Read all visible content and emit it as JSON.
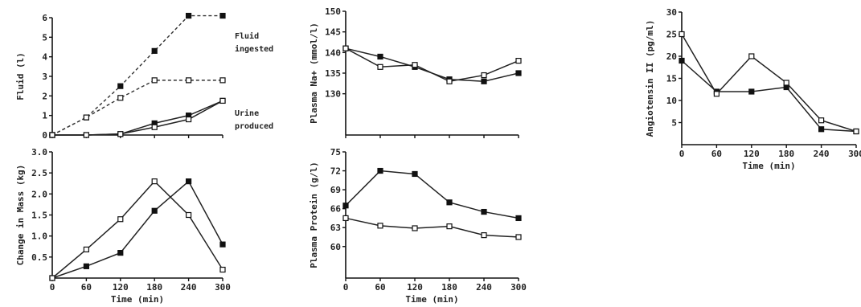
{
  "chart_data": [
    {
      "id": "fluid",
      "type": "line",
      "xlabel": "",
      "ylabel": "Fluid (l)",
      "xlim": [
        0,
        300
      ],
      "ylim": [
        0,
        6
      ],
      "x_ticks": [],
      "y_ticks": [
        0,
        1,
        2,
        3,
        4,
        5,
        6
      ],
      "x": [
        0,
        60,
        120,
        180,
        240,
        300
      ],
      "annotations": [
        "Fluid",
        "ingested",
        "Urine",
        "produced"
      ],
      "series": [
        {
          "marker": "filled",
          "dash": true,
          "values": [
            0,
            0.9,
            2.5,
            4.3,
            6.1,
            6.1
          ]
        },
        {
          "marker": "open",
          "dash": true,
          "values": [
            0,
            0.9,
            1.9,
            2.8,
            2.8,
            2.8
          ]
        },
        {
          "marker": "filled",
          "dash": false,
          "values": [
            0,
            0,
            0.05,
            0.6,
            1.0,
            1.75
          ]
        },
        {
          "marker": "open",
          "dash": false,
          "values": [
            0,
            0,
            0.05,
            0.4,
            0.8,
            1.75
          ]
        }
      ]
    },
    {
      "id": "mass",
      "type": "line",
      "xlabel": "Time (min)",
      "ylabel": "Change in Mass (kg)",
      "xlim": [
        0,
        300
      ],
      "ylim": [
        0,
        3.0
      ],
      "x_ticks": [
        "0",
        "60",
        "120",
        "180",
        "240",
        "300"
      ],
      "y_ticks": [
        "0.5",
        "1.0",
        "1.5",
        "2.0",
        "2.5",
        "3.0"
      ],
      "x": [
        0,
        60,
        120,
        180,
        240,
        300
      ],
      "series": [
        {
          "marker": "filled",
          "dash": false,
          "values": [
            0,
            0.28,
            0.6,
            1.6,
            2.3,
            0.8
          ]
        },
        {
          "marker": "open",
          "dash": false,
          "values": [
            0,
            0.68,
            1.4,
            2.3,
            1.5,
            0.2
          ]
        }
      ]
    },
    {
      "id": "sodium",
      "type": "line",
      "xlabel": "",
      "ylabel": "Plasma Na+ (mmol/l)",
      "xlim": [
        0,
        300
      ],
      "ylim": [
        120,
        150
      ],
      "x_ticks": [],
      "y_ticks": [
        "130",
        "135",
        "140",
        "145",
        "150"
      ],
      "x": [
        0,
        60,
        120,
        180,
        240,
        300
      ],
      "series": [
        {
          "marker": "filled",
          "dash": false,
          "values": [
            141,
            139,
            136.5,
            133.5,
            133,
            135
          ]
        },
        {
          "marker": "open",
          "dash": false,
          "values": [
            141,
            136.5,
            137,
            133,
            134.5,
            138
          ]
        }
      ]
    },
    {
      "id": "protein",
      "type": "line",
      "xlabel": "Time (min)",
      "ylabel": "Plasma Protein (g/l)",
      "xlim": [
        0,
        300
      ],
      "ylim": [
        55,
        75
      ],
      "x_ticks": [
        "0",
        "60",
        "120",
        "180",
        "240",
        "300"
      ],
      "y_ticks": [
        "60",
        "63",
        "66",
        "69",
        "72",
        "75"
      ],
      "x": [
        0,
        60,
        120,
        180,
        240,
        300
      ],
      "series": [
        {
          "marker": "filled",
          "dash": false,
          "values": [
            66.5,
            72,
            71.5,
            67,
            65.5,
            64.5
          ]
        },
        {
          "marker": "open",
          "dash": false,
          "values": [
            64.5,
            63.3,
            62.9,
            63.2,
            61.8,
            61.5
          ]
        }
      ]
    },
    {
      "id": "angio",
      "type": "line",
      "xlabel": "Time (min)",
      "ylabel": "Angiotensin II (pg/ml)",
      "xlim": [
        0,
        300
      ],
      "ylim": [
        0,
        30
      ],
      "x_ticks": [
        "0",
        "60",
        "120",
        "180",
        "240",
        "300"
      ],
      "y_ticks": [
        "5",
        "10",
        "15",
        "20",
        "25",
        "30"
      ],
      "x": [
        0,
        60,
        120,
        180,
        240,
        300
      ],
      "series": [
        {
          "marker": "filled",
          "dash": false,
          "values": [
            19,
            12,
            12,
            13,
            3.5,
            3
          ]
        },
        {
          "marker": "open",
          "dash": false,
          "values": [
            25,
            11.5,
            20,
            14,
            5.5,
            3
          ]
        }
      ]
    }
  ]
}
